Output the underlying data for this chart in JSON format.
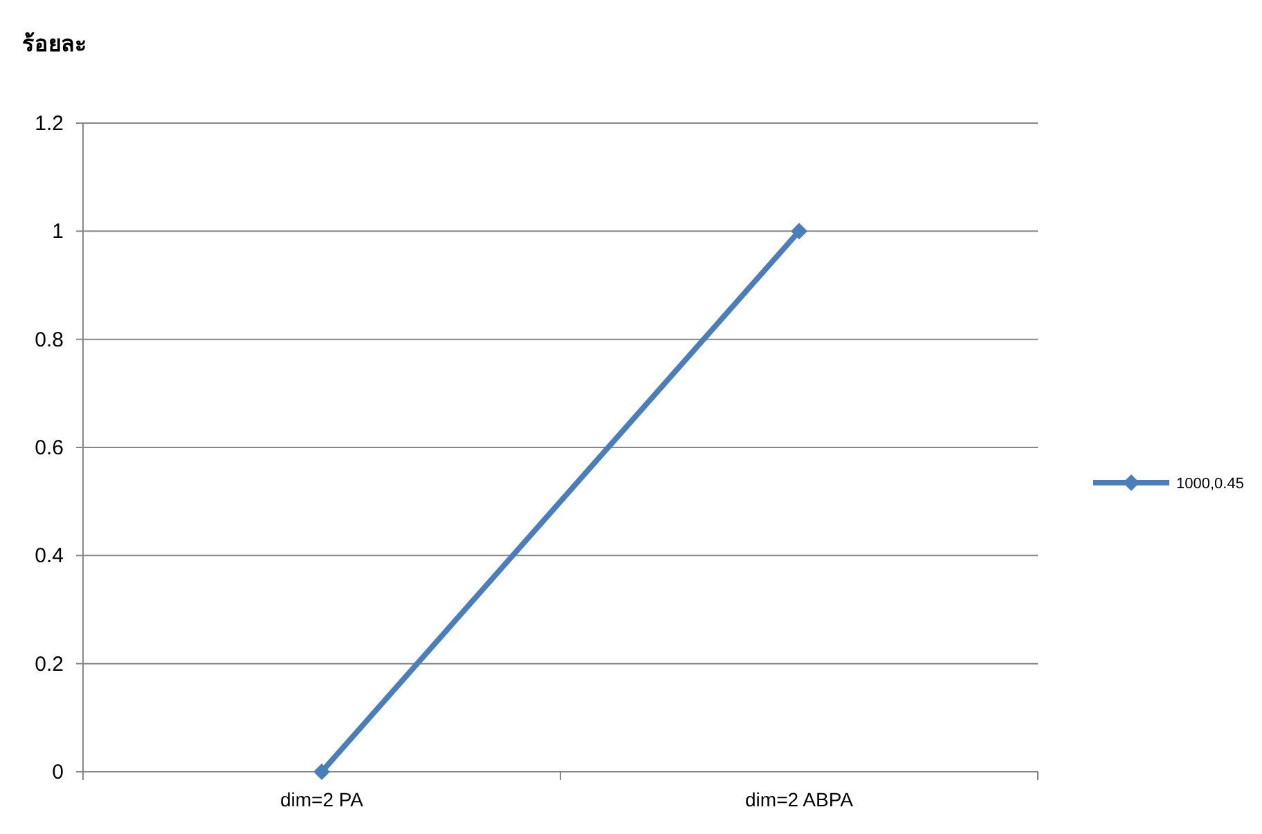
{
  "chart_data": {
    "type": "line",
    "ylabel": "ร้อยละ",
    "categories": [
      "dim=2 PA",
      "dim=2 ABPA"
    ],
    "series": [
      {
        "name": "1000,0.45",
        "color": "#4a7ebb",
        "values": [
          0,
          1
        ]
      }
    ],
    "ylim": [
      0,
      1.2
    ],
    "yticks": [
      0,
      0.2,
      0.4,
      0.6,
      0.8,
      1,
      1.2
    ],
    "grid": "y",
    "legend": "right",
    "marker": "diamond"
  }
}
